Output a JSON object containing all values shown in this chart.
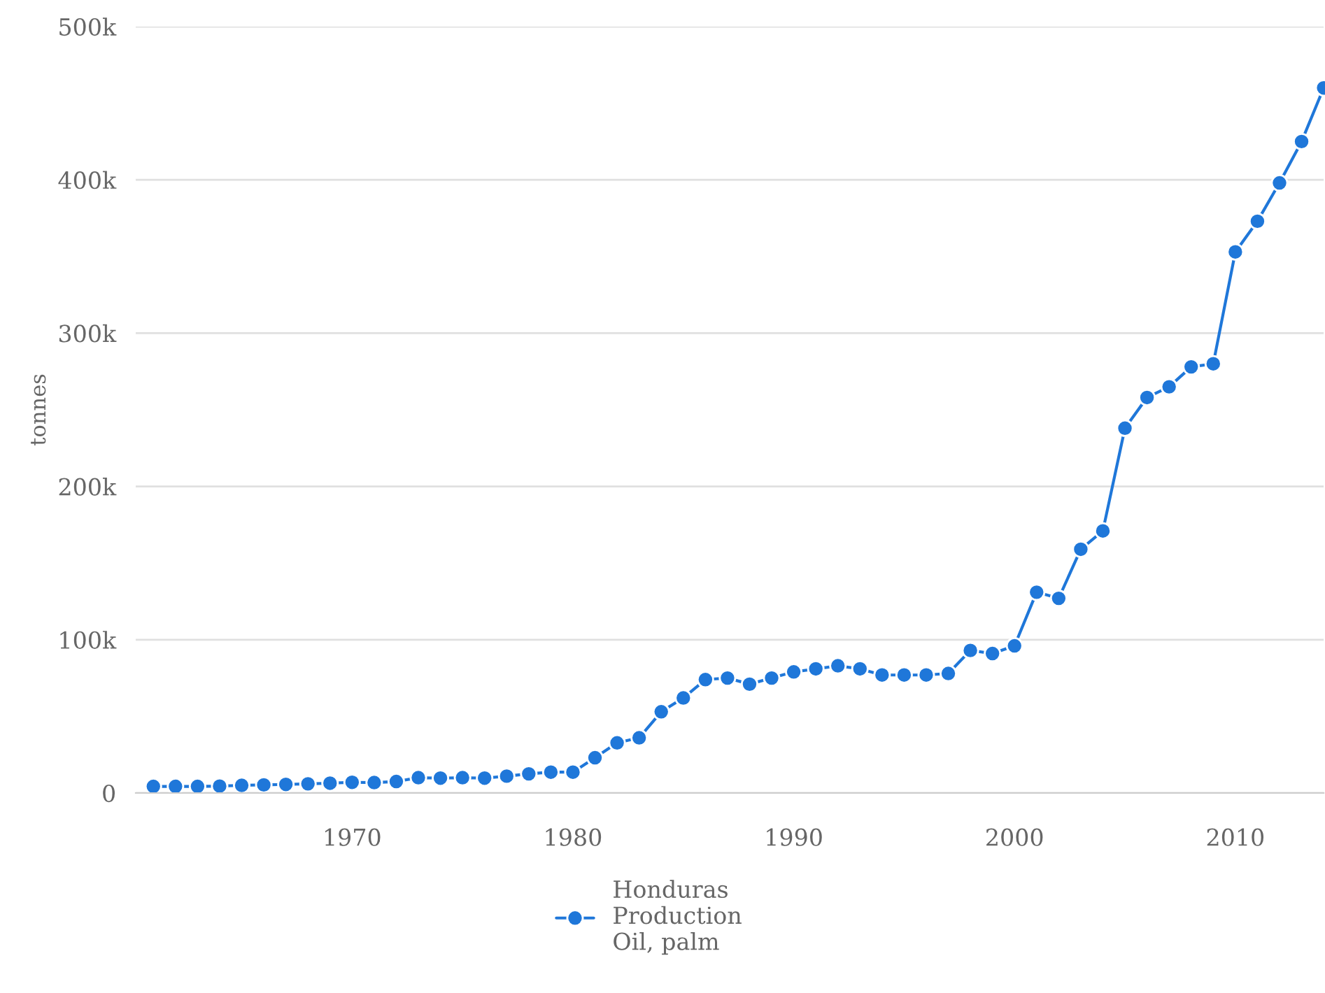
{
  "chart_data": {
    "type": "line",
    "ylabel": "tonnes",
    "x": [
      1961,
      1962,
      1963,
      1964,
      1965,
      1966,
      1967,
      1968,
      1969,
      1970,
      1971,
      1972,
      1973,
      1974,
      1975,
      1976,
      1977,
      1978,
      1979,
      1980,
      1981,
      1982,
      1983,
      1984,
      1985,
      1986,
      1987,
      1988,
      1989,
      1990,
      1991,
      1992,
      1993,
      1994,
      1995,
      1996,
      1997,
      1998,
      1999,
      2000,
      2001,
      2002,
      2003,
      2004,
      2005,
      2006,
      2007,
      2008,
      2009,
      2010,
      2011,
      2012,
      2013,
      2014
    ],
    "series": [
      {
        "name": "Honduras\nProduction\nOil, palm",
        "color": "#1f77d9",
        "values": [
          4300,
          4300,
          4300,
          4500,
          5000,
          5300,
          5600,
          6000,
          6400,
          7000,
          6800,
          7500,
          10000,
          9700,
          10000,
          9700,
          11000,
          12500,
          13600,
          13600,
          23000,
          32700,
          36000,
          53000,
          62000,
          74000,
          75000,
          71000,
          75000,
          79000,
          81000,
          83000,
          81000,
          77000,
          77000,
          77000,
          78000,
          93000,
          91000,
          96000,
          131000,
          127000,
          159000,
          171000,
          238000,
          258000,
          265000,
          278000,
          280000,
          353000,
          373000,
          398000,
          425000,
          460000
        ]
      }
    ],
    "xlim": [
      1960.2,
      2014
    ],
    "xticks": [
      1970,
      1980,
      1990,
      2000,
      2010
    ],
    "ylim": [
      0,
      500000
    ],
    "yticks": [
      {
        "value": 0,
        "label": "0"
      },
      {
        "value": 100000,
        "label": "100k"
      },
      {
        "value": 200000,
        "label": "200k"
      },
      {
        "value": 300000,
        "label": "300k"
      },
      {
        "value": 400000,
        "label": "400k"
      },
      {
        "value": 500000,
        "label": "500k"
      }
    ],
    "grid": "y",
    "legend": "bottom",
    "marker": "circle",
    "line_style": "solid"
  }
}
